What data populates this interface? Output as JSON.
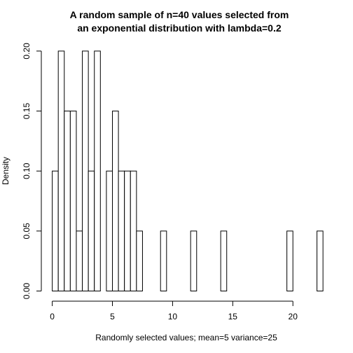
{
  "chart_data": {
    "type": "bar",
    "title_line1": "A random sample of n=40 values selected from",
    "title_line2": "an exponential distribution with lambda=0.2",
    "xlabel": "Randomly selected values; mean=5 variance=25",
    "ylabel": "Density",
    "xlim": [
      0,
      22.5
    ],
    "ylim": [
      0,
      0.2
    ],
    "x_ticks": [
      0,
      5,
      10,
      15,
      20
    ],
    "x_tick_labels": [
      "0",
      "5",
      "10",
      "15",
      "20"
    ],
    "y_ticks": [
      0,
      0.05,
      0.1,
      0.15,
      0.2
    ],
    "y_tick_labels": [
      "0.00",
      "0.05",
      "0.10",
      "0.15",
      "0.20"
    ],
    "bin_width": 0.5,
    "bins": [
      {
        "x0": 0.0,
        "x1": 0.5,
        "density": 0.1
      },
      {
        "x0": 0.5,
        "x1": 1.0,
        "density": 0.2
      },
      {
        "x0": 1.0,
        "x1": 1.5,
        "density": 0.15
      },
      {
        "x0": 1.5,
        "x1": 2.0,
        "density": 0.15
      },
      {
        "x0": 2.0,
        "x1": 2.5,
        "density": 0.05
      },
      {
        "x0": 2.5,
        "x1": 3.0,
        "density": 0.2
      },
      {
        "x0": 3.0,
        "x1": 3.5,
        "density": 0.1
      },
      {
        "x0": 3.5,
        "x1": 4.0,
        "density": 0.2
      },
      {
        "x0": 4.0,
        "x1": 4.5,
        "density": 0.0
      },
      {
        "x0": 4.5,
        "x1": 5.0,
        "density": 0.1
      },
      {
        "x0": 5.0,
        "x1": 5.5,
        "density": 0.15
      },
      {
        "x0": 5.5,
        "x1": 6.0,
        "density": 0.1
      },
      {
        "x0": 6.0,
        "x1": 6.5,
        "density": 0.1
      },
      {
        "x0": 6.5,
        "x1": 7.0,
        "density": 0.1
      },
      {
        "x0": 7.0,
        "x1": 7.5,
        "density": 0.05
      },
      {
        "x0": 9.0,
        "x1": 9.5,
        "density": 0.05
      },
      {
        "x0": 11.5,
        "x1": 12.0,
        "density": 0.05
      },
      {
        "x0": 14.0,
        "x1": 14.5,
        "density": 0.05
      },
      {
        "x0": 19.5,
        "x1": 20.0,
        "density": 0.05
      },
      {
        "x0": 22.0,
        "x1": 22.5,
        "density": 0.05
      }
    ],
    "bar_fill": "#ffffff",
    "bar_stroke": "#000000",
    "grid": false,
    "legend": "none"
  }
}
